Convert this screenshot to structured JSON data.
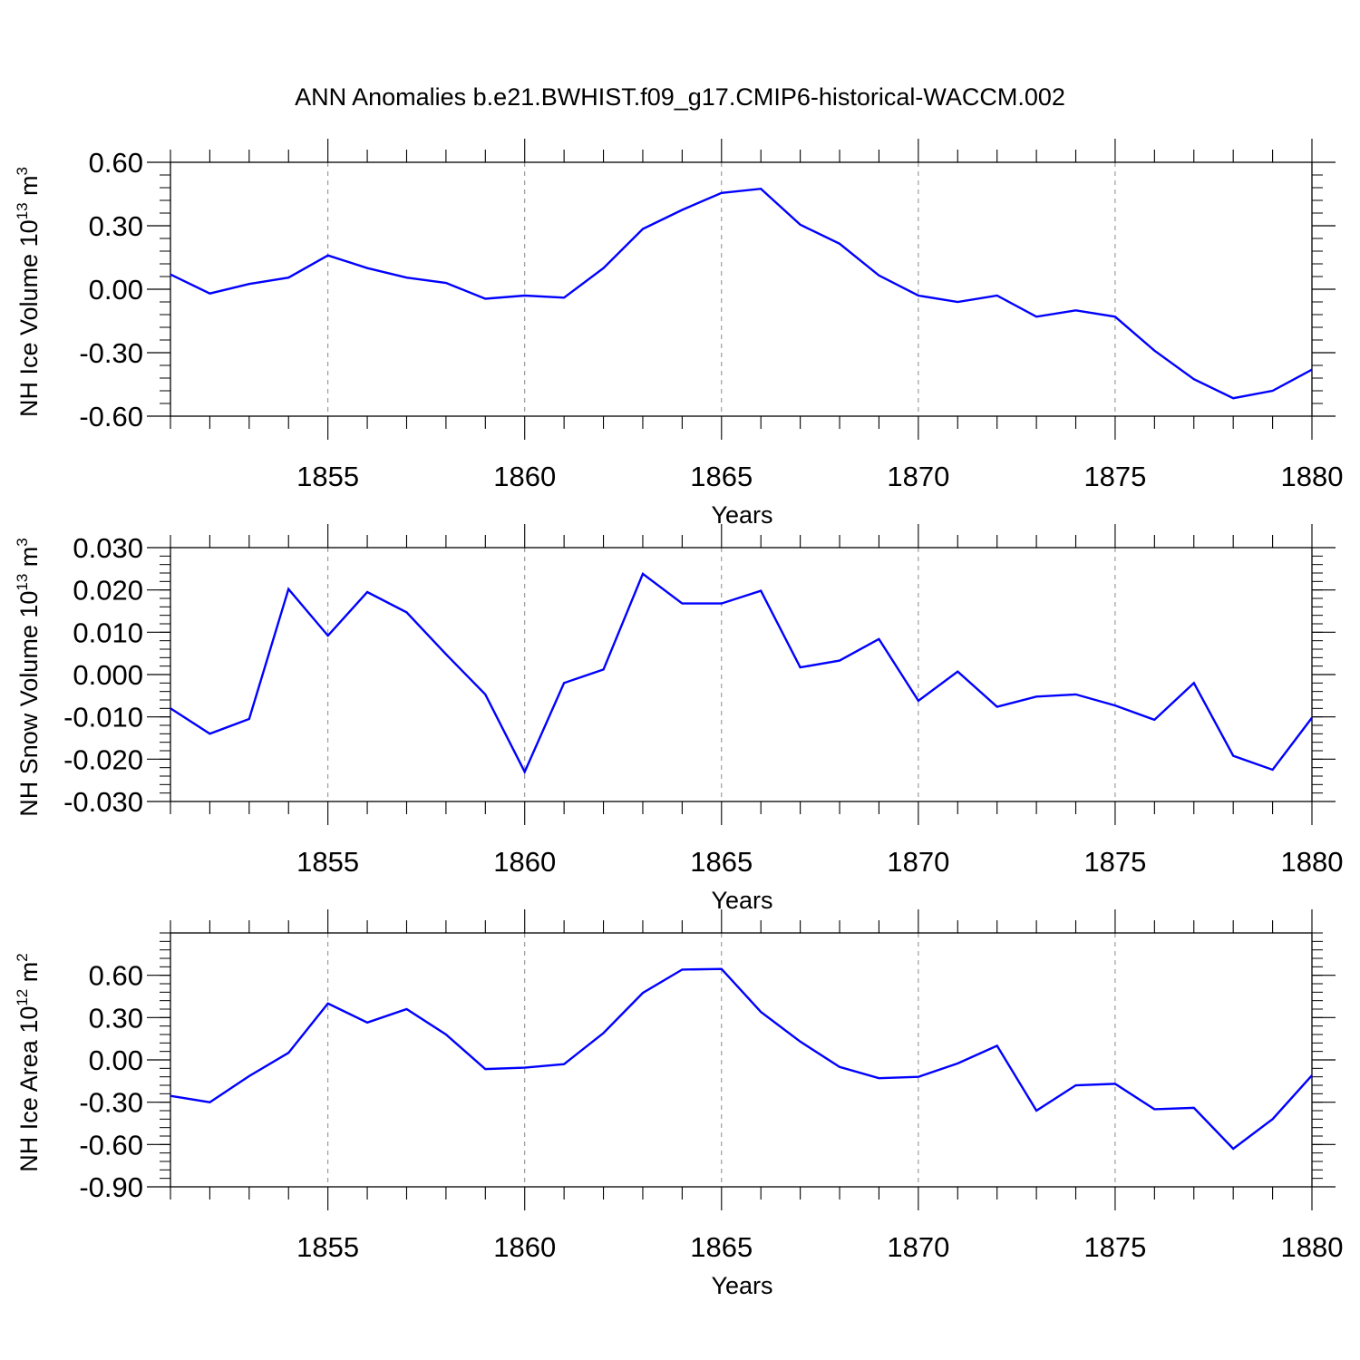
{
  "title": "ANN Anomalies b.e21.BWHIST.f09_g17.CMIP6-historical-WACCM.002",
  "colors": {
    "line": "#0000ff",
    "axis": "#000000",
    "grid": "#888888"
  },
  "chart_data": [
    {
      "type": "line",
      "ylabel": {
        "main": "NH Ice Volume 10",
        "exp": "13",
        "unit": " m",
        "unit_exp": "3"
      },
      "xlabel": "Years",
      "xlim": [
        1851,
        1880
      ],
      "ylim": [
        -0.6,
        0.6
      ],
      "yticks": [
        -0.6,
        -0.3,
        0.0,
        0.3,
        0.6
      ],
      "ytick_labels": [
        "-0.60",
        "-0.30",
        "0.00",
        "0.30",
        "0.60"
      ],
      "xticks": [
        1855,
        1860,
        1865,
        1870,
        1875,
        1880
      ],
      "xtick_labels": [
        "1855",
        "1860",
        "1865",
        "1870",
        "1875",
        "1880"
      ],
      "grid": "vertical dashed at major x ticks",
      "x": [
        1851,
        1852,
        1853,
        1854,
        1855,
        1856,
        1857,
        1858,
        1859,
        1860,
        1861,
        1862,
        1863,
        1864,
        1865,
        1866,
        1867,
        1868,
        1869,
        1870,
        1871,
        1872,
        1873,
        1874,
        1875,
        1876,
        1877,
        1878,
        1879,
        1880
      ],
      "values": [
        0.07,
        -0.02,
        0.025,
        0.055,
        0.16,
        0.1,
        0.055,
        0.03,
        -0.045,
        -0.03,
        -0.04,
        0.1,
        0.285,
        0.375,
        0.455,
        0.475,
        0.305,
        0.215,
        0.065,
        -0.03,
        -0.06,
        -0.03,
        -0.13,
        -0.1,
        -0.13,
        -0.29,
        -0.425,
        -0.515,
        -0.48,
        -0.38
      ]
    },
    {
      "type": "line",
      "ylabel": {
        "main": "NH Snow Volume 10",
        "exp": "13",
        "unit": " m",
        "unit_exp": "3"
      },
      "xlabel": "Years",
      "xlim": [
        1851,
        1880
      ],
      "ylim": [
        -0.03,
        0.03
      ],
      "yticks": [
        -0.03,
        -0.02,
        -0.01,
        0.0,
        0.01,
        0.02,
        0.03
      ],
      "ytick_labels": [
        "-0.030",
        "-0.020",
        "-0.010",
        "0.000",
        "0.010",
        "0.020",
        "0.030"
      ],
      "xticks": [
        1855,
        1860,
        1865,
        1870,
        1875,
        1880
      ],
      "xtick_labels": [
        "1855",
        "1860",
        "1865",
        "1870",
        "1875",
        "1880"
      ],
      "grid": "vertical dashed at major x ticks",
      "x": [
        1851,
        1852,
        1853,
        1854,
        1855,
        1856,
        1857,
        1858,
        1859,
        1860,
        1861,
        1862,
        1863,
        1864,
        1865,
        1866,
        1867,
        1868,
        1869,
        1870,
        1871,
        1872,
        1873,
        1874,
        1875,
        1876,
        1877,
        1878,
        1879,
        1880
      ],
      "values": [
        -0.008,
        -0.014,
        -0.0105,
        0.0202,
        0.0092,
        0.0195,
        0.0147,
        0.0048,
        -0.0047,
        -0.023,
        -0.002,
        0.0012,
        0.0238,
        0.0168,
        0.0168,
        0.0198,
        0.0017,
        0.0033,
        0.0084,
        -0.0062,
        0.0007,
        -0.0076,
        -0.0052,
        -0.0047,
        -0.0073,
        -0.0107,
        -0.002,
        -0.0192,
        -0.0225,
        -0.0102
      ]
    },
    {
      "type": "line",
      "ylabel": {
        "main": "NH Ice Area 10",
        "exp": "12",
        "unit": " m",
        "unit_exp": "2"
      },
      "xlabel": "Years",
      "xlim": [
        1851,
        1880
      ],
      "ylim": [
        -0.9,
        0.9
      ],
      "yticks": [
        -0.9,
        -0.6,
        -0.3,
        0.0,
        0.3,
        0.6
      ],
      "ytick_labels": [
        "-0.90",
        "-0.60",
        "-0.30",
        "0.00",
        "0.30",
        "0.60"
      ],
      "xticks": [
        1855,
        1860,
        1865,
        1870,
        1875,
        1880
      ],
      "xtick_labels": [
        "1855",
        "1860",
        "1865",
        "1870",
        "1875",
        "1880"
      ],
      "grid": "vertical dashed at major x ticks",
      "x": [
        1851,
        1852,
        1853,
        1854,
        1855,
        1856,
        1857,
        1858,
        1859,
        1860,
        1861,
        1862,
        1863,
        1864,
        1865,
        1866,
        1867,
        1868,
        1869,
        1870,
        1871,
        1872,
        1873,
        1874,
        1875,
        1876,
        1877,
        1878,
        1879,
        1880
      ],
      "values": [
        -0.255,
        -0.3,
        -0.115,
        0.05,
        0.4,
        0.265,
        0.36,
        0.18,
        -0.065,
        -0.055,
        -0.03,
        0.19,
        0.475,
        0.64,
        0.645,
        0.34,
        0.13,
        -0.05,
        -0.13,
        -0.12,
        -0.025,
        0.1,
        -0.36,
        -0.18,
        -0.17,
        -0.35,
        -0.34,
        -0.63,
        -0.42,
        -0.11
      ]
    }
  ]
}
